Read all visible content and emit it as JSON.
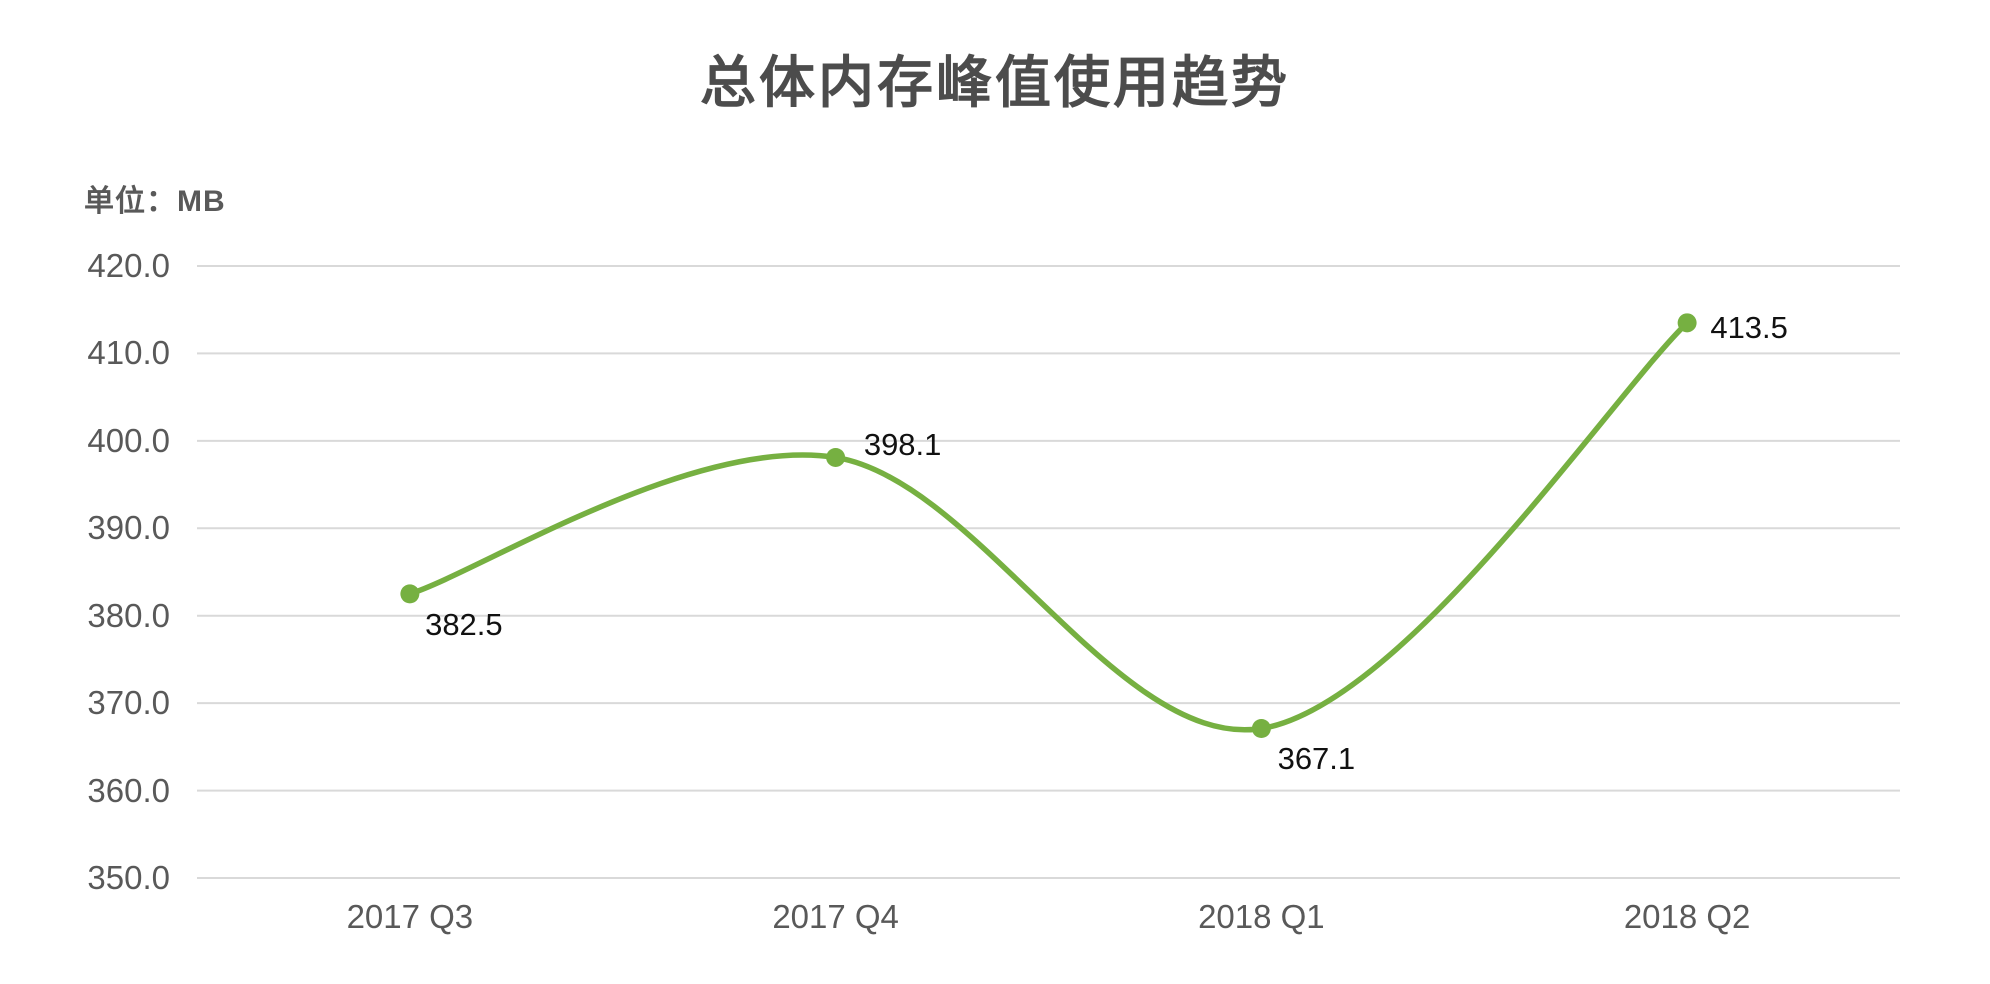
{
  "chart_data": {
    "type": "line",
    "title": "总体内存峰值使用趋势",
    "unit_label": "单位：MB",
    "categories": [
      "2017 Q3",
      "2017 Q4",
      "2018 Q1",
      "2018 Q2"
    ],
    "values": [
      382.5,
      398.1,
      367.1,
      413.5
    ],
    "data_labels": [
      "382.5",
      "398.1",
      "367.1",
      "413.5"
    ],
    "ytick_labels": [
      "420.0",
      "410.0",
      "400.0",
      "390.0",
      "380.0",
      "370.0",
      "360.0",
      "350.0"
    ],
    "ytick_values": [
      420,
      410,
      400,
      390,
      380,
      370,
      360,
      350
    ],
    "ylim": [
      350,
      420
    ],
    "xlabel": "",
    "ylabel": "MB",
    "grid": true,
    "legend": false,
    "smooth": true,
    "colors": {
      "line": "#76b041",
      "marker": "#76b041",
      "gridline": "#d9d9d9",
      "axis_text": "#595959",
      "title_text": "#4c4c4c",
      "data_label_text": "#111111",
      "background": "#ffffff"
    }
  }
}
